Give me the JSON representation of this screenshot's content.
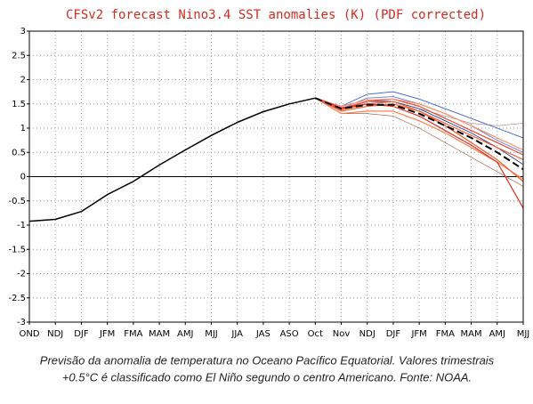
{
  "chart_data": {
    "type": "line",
    "title": "CFSv2 forecast Nino3.4 SST anomalies (K) (PDF corrected)",
    "title_color": "#d42a1e",
    "categories": [
      "OND",
      "NDJ",
      "DJF",
      "JFM",
      "FMA",
      "MAM",
      "AMJ",
      "MJJ",
      "JJA",
      "JAS",
      "ASO",
      "Oct",
      "Nov",
      "NDJ",
      "DJF",
      "JFM",
      "FMA",
      "MAM",
      "AMJ",
      "MJJ"
    ],
    "ylim": [
      -3,
      3
    ],
    "yticks": [
      -3,
      -2.5,
      -2,
      -1.5,
      -1,
      -0.5,
      0,
      0.5,
      1,
      1.5,
      2,
      2.5,
      3
    ],
    "grid": true,
    "hlines": [
      0
    ],
    "series": [
      {
        "color": "#a0522d",
        "line_width": 0.6,
        "values": [
          null,
          null,
          null,
          null,
          null,
          null,
          null,
          null,
          null,
          null,
          null,
          1.62,
          1.3,
          1.3,
          1.25,
          1.0,
          0.7,
          0.4,
          0.1,
          -0.2
        ]
      },
      {
        "color": "#b08070",
        "line_width": 0.6,
        "values": [
          null,
          null,
          null,
          null,
          null,
          null,
          null,
          null,
          null,
          null,
          null,
          1.62,
          1.4,
          1.5,
          1.55,
          1.4,
          1.25,
          1.1,
          1.05,
          1.1
        ]
      },
      {
        "color": "#3a5fcd",
        "line_width": 0.9,
        "values": [
          null,
          null,
          null,
          null,
          null,
          null,
          null,
          null,
          null,
          null,
          null,
          1.62,
          1.45,
          1.7,
          1.75,
          1.6,
          1.4,
          1.2,
          1.0,
          0.8
        ]
      },
      {
        "color": "#5b7fd9",
        "line_width": 0.9,
        "values": [
          null,
          null,
          null,
          null,
          null,
          null,
          null,
          null,
          null,
          null,
          null,
          1.62,
          1.4,
          1.62,
          1.65,
          1.5,
          1.3,
          1.05,
          0.75,
          0.5
        ]
      },
      {
        "color": "#27408b",
        "line_width": 0.9,
        "values": [
          null,
          null,
          null,
          null,
          null,
          null,
          null,
          null,
          null,
          null,
          null,
          1.62,
          1.38,
          1.55,
          1.55,
          1.4,
          1.15,
          0.9,
          0.6,
          0.25
        ]
      },
      {
        "color": "#f4603c",
        "line_width": 1.2,
        "values": [
          null,
          null,
          null,
          null,
          null,
          null,
          null,
          null,
          null,
          null,
          null,
          1.62,
          1.35,
          1.45,
          1.5,
          1.35,
          1.1,
          0.85,
          0.6,
          0.35
        ]
      },
      {
        "color": "#e8472b",
        "line_width": 1.2,
        "values": [
          null,
          null,
          null,
          null,
          null,
          null,
          null,
          null,
          null,
          null,
          null,
          1.62,
          1.4,
          1.55,
          1.6,
          1.45,
          1.2,
          0.95,
          0.7,
          0.45
        ]
      },
      {
        "color": "#ff7f50",
        "line_width": 1.2,
        "values": [
          null,
          null,
          null,
          null,
          null,
          null,
          null,
          null,
          null,
          null,
          null,
          1.62,
          1.3,
          1.35,
          1.35,
          1.15,
          0.9,
          0.6,
          0.3,
          -0.05
        ]
      },
      {
        "color": "#f05a28",
        "line_width": 1.2,
        "values": [
          null,
          null,
          null,
          null,
          null,
          null,
          null,
          null,
          null,
          null,
          null,
          1.62,
          1.38,
          1.5,
          1.55,
          1.35,
          1.05,
          0.7,
          0.35,
          -0.1
        ]
      },
      {
        "color": "#ff8c69",
        "line_width": 1.2,
        "values": [
          null,
          null,
          null,
          null,
          null,
          null,
          null,
          null,
          null,
          null,
          null,
          1.62,
          1.45,
          1.58,
          1.6,
          1.5,
          1.3,
          1.05,
          0.8,
          0.55
        ]
      },
      {
        "color": "#e0301e",
        "line_width": 1.2,
        "values": [
          null,
          null,
          null,
          null,
          null,
          null,
          null,
          null,
          null,
          null,
          null,
          1.62,
          1.42,
          1.5,
          1.45,
          1.25,
          0.95,
          0.65,
          0.3,
          -0.65
        ]
      },
      {
        "color": "#000000",
        "line_width": 2,
        "dashed": true,
        "values": [
          null,
          null,
          null,
          null,
          null,
          null,
          null,
          null,
          null,
          null,
          null,
          1.62,
          1.4,
          1.48,
          1.48,
          1.3,
          1.05,
          0.8,
          0.5,
          0.15
        ]
      },
      {
        "color": "#000000",
        "line_width": 1.5,
        "values": [
          -0.92,
          -0.88,
          -0.72,
          -0.37,
          -0.1,
          0.24,
          0.55,
          0.85,
          1.12,
          1.34,
          1.5,
          1.62,
          null,
          null,
          null,
          null,
          null,
          null,
          null,
          null
        ]
      }
    ],
    "caption": [
      "Previsão da anomalia de temperatura no Oceano Pacífico Equatorial. Valores trimestrais",
      "+0.5°C é classificado como El Niño segundo o centro Americano. Fonte: NOAA."
    ]
  }
}
